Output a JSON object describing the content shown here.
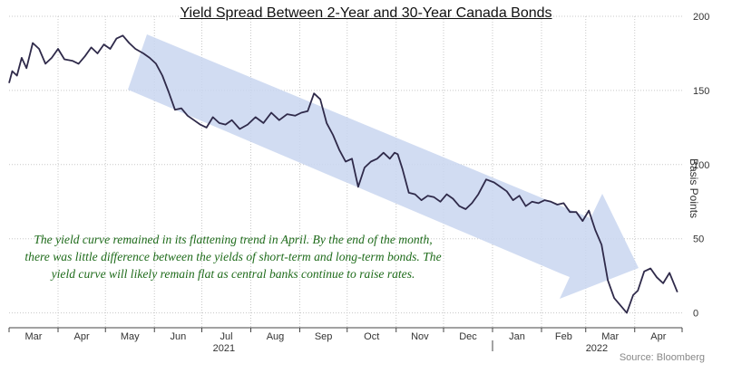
{
  "chart_data": {
    "type": "line",
    "title": "Yield Spread Between 2-Year and 30-Year Canada Bonds",
    "ylabel": "Basis Points",
    "ylim": [
      -10,
      200
    ],
    "yticks": [
      0,
      50,
      100,
      150,
      200
    ],
    "grid": true,
    "x_month_labels": [
      "Mar",
      "Apr",
      "May",
      "Jun",
      "Jul",
      "Aug",
      "Sep",
      "Oct",
      "Nov",
      "Dec",
      "Jan",
      "Feb",
      "Mar",
      "Apr"
    ],
    "x_year_labels": [
      "2021",
      "2022"
    ],
    "series": [
      {
        "x": [
          "2021-03-01",
          "2021-03-03",
          "2021-03-06",
          "2021-03-09",
          "2021-03-12",
          "2021-03-16",
          "2021-03-20",
          "2021-03-24",
          "2021-03-28",
          "2021-04-01",
          "2021-04-05",
          "2021-04-10",
          "2021-04-14",
          "2021-04-18",
          "2021-04-22",
          "2021-04-26",
          "2021-04-30",
          "2021-05-04",
          "2021-05-08",
          "2021-05-12",
          "2021-05-16",
          "2021-05-20",
          "2021-05-25",
          "2021-05-29",
          "2021-06-02",
          "2021-06-06",
          "2021-06-10",
          "2021-06-14",
          "2021-06-18",
          "2021-06-22",
          "2021-06-26",
          "2021-06-30",
          "2021-07-04",
          "2021-07-08",
          "2021-07-12",
          "2021-07-16",
          "2021-07-20",
          "2021-07-25",
          "2021-07-30",
          "2021-08-04",
          "2021-08-09",
          "2021-08-14",
          "2021-08-19",
          "2021-08-24",
          "2021-08-29",
          "2021-09-02",
          "2021-09-06",
          "2021-09-10",
          "2021-09-14",
          "2021-09-18",
          "2021-09-22",
          "2021-09-26",
          "2021-09-30",
          "2021-10-04",
          "2021-10-08",
          "2021-10-12",
          "2021-10-16",
          "2021-10-20",
          "2021-10-24",
          "2021-10-28",
          "2021-10-31",
          "2021-11-02",
          "2021-11-05",
          "2021-11-09",
          "2021-11-13",
          "2021-11-17",
          "2021-11-21",
          "2021-11-25",
          "2021-11-29",
          "2021-12-03",
          "2021-12-07",
          "2021-12-11",
          "2021-12-15",
          "2021-12-19",
          "2021-12-23",
          "2021-12-28",
          "2022-01-02",
          "2022-01-06",
          "2022-01-10",
          "2022-01-14",
          "2022-01-18",
          "2022-01-22",
          "2022-01-26",
          "2022-01-30",
          "2022-02-03",
          "2022-02-07",
          "2022-02-11",
          "2022-02-15",
          "2022-02-19",
          "2022-02-23",
          "2022-02-27",
          "2022-03-03",
          "2022-03-07",
          "2022-03-11",
          "2022-03-15",
          "2022-03-19",
          "2022-03-23",
          "2022-03-27",
          "2022-03-31",
          "2022-04-03",
          "2022-04-07",
          "2022-04-11",
          "2022-04-15",
          "2022-04-19",
          "2022-04-23",
          "2022-04-28"
        ],
        "y": [
          155,
          163,
          160,
          172,
          165,
          182,
          178,
          168,
          172,
          178,
          171,
          170,
          168,
          173,
          179,
          175,
          181,
          178,
          185,
          187,
          182,
          178,
          175,
          172,
          168,
          160,
          149,
          137,
          138,
          133,
          130,
          127,
          125,
          132,
          128,
          127,
          130,
          124,
          127,
          132,
          128,
          135,
          130,
          134,
          133,
          135,
          136,
          148,
          144,
          128,
          120,
          110,
          102,
          104,
          85,
          98,
          102,
          104,
          108,
          104,
          108,
          107,
          97,
          81,
          80,
          76,
          79,
          78,
          75,
          80,
          77,
          72,
          70,
          74,
          80,
          90,
          88,
          85,
          82,
          76,
          79,
          72,
          75,
          74,
          76,
          75,
          73,
          74,
          68,
          68,
          62,
          69,
          56,
          46,
          22,
          10,
          5,
          0,
          12,
          15,
          28,
          30,
          24,
          20,
          27,
          14
        ]
      }
    ],
    "annotation": "The yield curve remained in its flattening trend in April. By the end of the month, there was little difference between the yields of short-term and long-term bonds. The yield curve will likely remain flat as central banks continue to raise rates.",
    "source": "Source: Bloomberg"
  },
  "colors": {
    "line": "#2f2a4a",
    "arrow": "#c9d6f0",
    "annotation": "#1e6b1a"
  }
}
